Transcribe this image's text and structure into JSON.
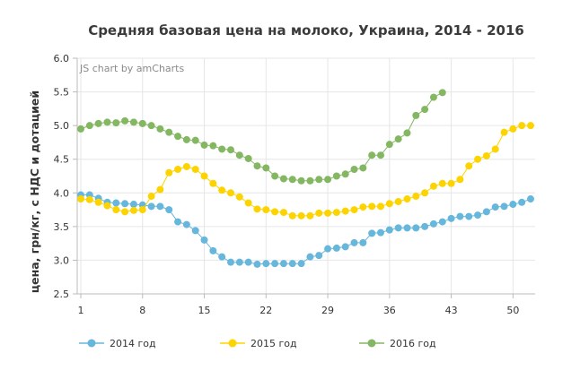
{
  "credit": "JS chart by amCharts",
  "chart_data": {
    "type": "line",
    "title": "Средняя базовая цена на молоко, Украина, 2014 - 2016",
    "xlabel": "",
    "ylabel": "цена, грн/кг, с НДС и дотацией",
    "xlim": [
      1,
      52
    ],
    "ylim": [
      2.5,
      6.0
    ],
    "x_ticks": [
      1,
      8,
      15,
      22,
      29,
      36,
      43,
      50
    ],
    "y_ticks": [
      "2.5",
      "3.0",
      "3.5",
      "4.0",
      "4.5",
      "5.0",
      "5.5",
      "6.0"
    ],
    "grid": true,
    "legend_position": "bottom",
    "series": [
      {
        "name": "2014 год",
        "color": "#67b7dc",
        "x": [
          1,
          2,
          3,
          4,
          5,
          6,
          7,
          8,
          9,
          10,
          11,
          12,
          13,
          14,
          15,
          16,
          17,
          18,
          19,
          20,
          21,
          22,
          23,
          24,
          25,
          26,
          27,
          28,
          29,
          30,
          31,
          32,
          33,
          34,
          35,
          36,
          37,
          38,
          39,
          40,
          41,
          42,
          43,
          44,
          45,
          46,
          47,
          48,
          49,
          50,
          51,
          52
        ],
        "values": [
          3.97,
          3.97,
          3.92,
          3.86,
          3.85,
          3.84,
          3.83,
          3.82,
          3.8,
          3.8,
          3.75,
          3.57,
          3.53,
          3.44,
          3.3,
          3.14,
          3.05,
          2.97,
          2.97,
          2.97,
          2.94,
          2.95,
          2.95,
          2.95,
          2.95,
          2.95,
          3.05,
          3.07,
          3.17,
          3.18,
          3.2,
          3.26,
          3.26,
          3.4,
          3.41,
          3.45,
          3.48,
          3.48,
          3.48,
          3.5,
          3.54,
          3.57,
          3.62,
          3.65,
          3.65,
          3.67,
          3.72,
          3.79,
          3.8,
          3.83,
          3.86,
          3.91
        ]
      },
      {
        "name": "2015 год",
        "color": "#fdd400",
        "x": [
          1,
          2,
          3,
          4,
          5,
          6,
          7,
          8,
          9,
          10,
          11,
          12,
          13,
          14,
          15,
          16,
          17,
          18,
          19,
          20,
          21,
          22,
          23,
          24,
          25,
          26,
          27,
          28,
          29,
          30,
          31,
          32,
          33,
          34,
          35,
          36,
          37,
          38,
          39,
          40,
          41,
          42,
          43,
          44,
          45,
          46,
          47,
          48,
          49,
          50,
          51,
          52
        ],
        "values": [
          3.91,
          3.9,
          3.86,
          3.81,
          3.75,
          3.72,
          3.74,
          3.75,
          3.95,
          4.05,
          4.3,
          4.35,
          4.39,
          4.35,
          4.25,
          4.14,
          4.04,
          4.0,
          3.94,
          3.85,
          3.76,
          3.75,
          3.72,
          3.71,
          3.66,
          3.66,
          3.66,
          3.7,
          3.7,
          3.71,
          3.73,
          3.75,
          3.79,
          3.8,
          3.8,
          3.84,
          3.87,
          3.91,
          3.95,
          4.0,
          4.1,
          4.14,
          4.14,
          4.2,
          4.4,
          4.5,
          4.55,
          4.65,
          4.9,
          4.95,
          5.0,
          5.0
        ]
      },
      {
        "name": "2016 год",
        "color": "#84b761",
        "x": [
          1,
          2,
          3,
          4,
          5,
          6,
          7,
          8,
          9,
          10,
          11,
          12,
          13,
          14,
          15,
          16,
          17,
          18,
          19,
          20,
          21,
          22,
          23,
          24,
          25,
          26,
          27,
          28,
          29,
          30,
          31,
          32,
          33,
          34,
          35,
          36,
          37,
          38,
          39,
          40,
          41,
          42
        ],
        "values": [
          4.95,
          5.0,
          5.03,
          5.05,
          5.04,
          5.07,
          5.05,
          5.03,
          5.0,
          4.95,
          4.9,
          4.84,
          4.79,
          4.78,
          4.71,
          4.7,
          4.65,
          4.64,
          4.56,
          4.51,
          4.4,
          4.37,
          4.25,
          4.21,
          4.2,
          4.18,
          4.18,
          4.2,
          4.2,
          4.25,
          4.28,
          4.35,
          4.37,
          4.56,
          4.56,
          4.72,
          4.8,
          4.89,
          5.15,
          5.24,
          5.42,
          5.49
        ]
      }
    ]
  }
}
